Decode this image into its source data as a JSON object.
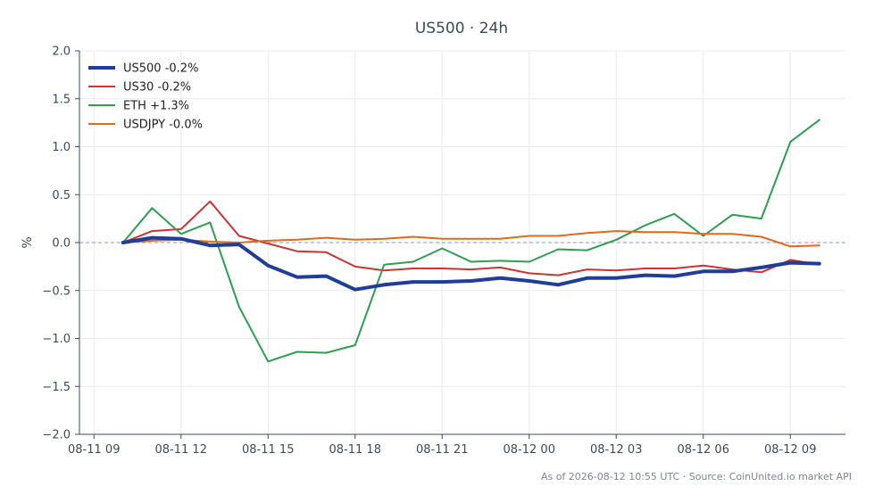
{
  "chart_data": {
    "type": "line",
    "title": "US500 · 24h",
    "ylabel": "%",
    "xlabel": "",
    "ylim": [
      -2.0,
      2.0
    ],
    "yticks": [
      "2.0",
      "1.5",
      "1.0",
      "0.5",
      "0.0",
      "−0.5",
      "−1.0",
      "−1.5",
      "−2.0"
    ],
    "ytick_values": [
      2.0,
      1.5,
      1.0,
      0.5,
      0.0,
      -0.5,
      -1.0,
      -1.5,
      -2.0
    ],
    "xrange_hours": [
      -0.5,
      25.9
    ],
    "xticks": [
      {
        "label": "08-11 09",
        "hour": 0
      },
      {
        "label": "08-11 12",
        "hour": 3
      },
      {
        "label": "08-11 15",
        "hour": 6
      },
      {
        "label": "08-11 18",
        "hour": 9
      },
      {
        "label": "08-11 21",
        "hour": 12
      },
      {
        "label": "08-12 00",
        "hour": 15
      },
      {
        "label": "08-12 03",
        "hour": 18
      },
      {
        "label": "08-12 06",
        "hour": 21
      },
      {
        "label": "08-12 09",
        "hour": 24
      }
    ],
    "x_hours": [
      1,
      2,
      3,
      4,
      5,
      6,
      7,
      8,
      9,
      10,
      11,
      12,
      13,
      14,
      15,
      16,
      17,
      18,
      19,
      20,
      21,
      22,
      23,
      24,
      25
    ],
    "zero_line": true,
    "grid": true,
    "legend_position": "top-left",
    "series": [
      {
        "name": "US500 -0.2%",
        "color": "#1f3d99",
        "width": 4,
        "values": [
          0.0,
          0.05,
          0.04,
          -0.03,
          -0.02,
          -0.24,
          -0.36,
          -0.35,
          -0.49,
          -0.44,
          -0.41,
          -0.41,
          -0.4,
          -0.37,
          -0.4,
          -0.44,
          -0.37,
          -0.37,
          -0.34,
          -0.35,
          -0.3,
          -0.3,
          -0.26,
          -0.21,
          -0.22
        ]
      },
      {
        "name": "US30 -0.2%",
        "color": "#cc3333",
        "width": 2,
        "values": [
          0.0,
          0.12,
          0.14,
          0.43,
          0.07,
          -0.01,
          -0.09,
          -0.1,
          -0.25,
          -0.29,
          -0.27,
          -0.27,
          -0.28,
          -0.26,
          -0.32,
          -0.34,
          -0.28,
          -0.29,
          -0.27,
          -0.27,
          -0.24,
          -0.28,
          -0.31,
          -0.18,
          -0.23
        ]
      },
      {
        "name": "ETH +1.3%",
        "color": "#2e9e4f",
        "width": 2,
        "values": [
          0.0,
          0.36,
          0.09,
          0.21,
          -0.67,
          -1.24,
          -1.14,
          -1.15,
          -1.07,
          -0.23,
          -0.2,
          -0.06,
          -0.2,
          -0.19,
          -0.2,
          -0.07,
          -0.08,
          0.03,
          0.18,
          0.3,
          0.07,
          0.29,
          0.25,
          1.05,
          1.28
        ]
      },
      {
        "name": "USDJPY -0.0%",
        "color": "#e0691a",
        "width": 2,
        "values": [
          0.0,
          0.02,
          0.03,
          0.01,
          0.0,
          0.02,
          0.03,
          0.05,
          0.03,
          0.04,
          0.06,
          0.04,
          0.04,
          0.04,
          0.07,
          0.07,
          0.1,
          0.12,
          0.11,
          0.11,
          0.09,
          0.09,
          0.06,
          -0.04,
          -0.03
        ]
      }
    ],
    "footer": "As of 2026-08-12 10:55 UTC · Source: CoinUnited.io market API"
  }
}
